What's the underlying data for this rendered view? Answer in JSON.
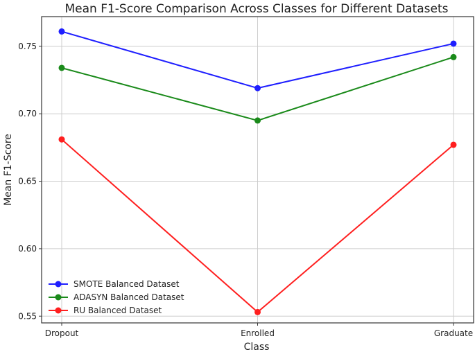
{
  "chart_data": {
    "type": "line",
    "title": "Mean F1-Score Comparison Across Classes for Different Datasets",
    "xlabel": "Class",
    "ylabel": "Mean F1-Score",
    "categories": [
      "Dropout",
      "Enrolled",
      "Graduate"
    ],
    "ylim": [
      0.545,
      0.772
    ],
    "yticks": [
      0.55,
      0.6,
      0.65,
      0.7,
      0.75
    ],
    "ytick_labels": [
      "0.55",
      "0.60",
      "0.65",
      "0.70",
      "0.75"
    ],
    "grid": true,
    "legend_position": "lower-left",
    "series": [
      {
        "name": "SMOTE Balanced Dataset",
        "color": "#1f1fff",
        "values": [
          0.761,
          0.719,
          0.752
        ]
      },
      {
        "name": "ADASYN Balanced Dataset",
        "color": "#1a8a1a",
        "values": [
          0.734,
          0.695,
          0.742
        ]
      },
      {
        "name": "RU Balanced Dataset",
        "color": "#ff1f1f",
        "values": [
          0.681,
          0.553,
          0.677
        ]
      }
    ]
  }
}
